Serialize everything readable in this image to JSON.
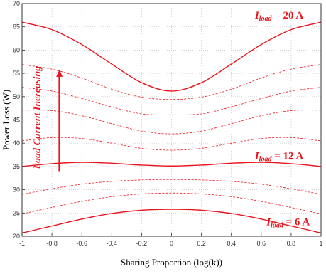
{
  "chart_data": {
    "type": "line",
    "xlabel": "Sharing Proportion (log(k))",
    "ylabel": "Power Loss (W)",
    "xlim": [
      -1,
      1
    ],
    "ylim": [
      20,
      70
    ],
    "xticks": [
      -1,
      -0.8,
      -0.6,
      -0.4,
      -0.2,
      0,
      0.2,
      0.4,
      0.6,
      0.8,
      1
    ],
    "xtick_labels": [
      "-1",
      "-0.8",
      "-0.6",
      "-0.4",
      "-0.2",
      "0",
      "0.2",
      "0.4",
      "0.6",
      "0.8",
      "1"
    ],
    "yticks": [
      20,
      25,
      30,
      35,
      40,
      45,
      50,
      55,
      60,
      65,
      70
    ],
    "ytick_labels": [
      "20",
      "25",
      "30",
      "35",
      "40",
      "45",
      "50",
      "55",
      "60",
      "65",
      "70"
    ],
    "grid": true,
    "line_color": "#e8141c",
    "annotation_color": "#e8141c",
    "x": [
      -1,
      -0.8,
      -0.6,
      -0.4,
      -0.2,
      0,
      0.2,
      0.4,
      0.6,
      0.8,
      1
    ],
    "series": [
      {
        "style": "solid",
        "values": [
          20.7,
          22.2,
          23.7,
          24.9,
          25.6,
          25.8,
          25.6,
          24.9,
          23.7,
          22.2,
          20.7
        ]
      },
      {
        "style": "dashed",
        "values": [
          24.8,
          26.2,
          27.5,
          28.5,
          29.1,
          29.3,
          29.1,
          28.5,
          27.5,
          26.2,
          24.8
        ]
      },
      {
        "style": "dashed",
        "values": [
          29.0,
          30.2,
          31.2,
          31.8,
          32.1,
          32.2,
          32.1,
          31.8,
          31.2,
          30.2,
          29.0
        ]
      },
      {
        "style": "solid",
        "values": [
          35.0,
          35.6,
          35.9,
          35.7,
          35.3,
          35.1,
          35.3,
          35.7,
          35.9,
          35.6,
          35.0
        ]
      },
      {
        "style": "dashed",
        "values": [
          40.5,
          41.2,
          41.0,
          40.0,
          38.9,
          38.5,
          38.9,
          40.0,
          41.0,
          41.2,
          40.5
        ]
      },
      {
        "style": "dashed",
        "values": [
          47.1,
          47.0,
          45.9,
          44.2,
          42.6,
          42.0,
          42.6,
          44.2,
          45.9,
          47.0,
          47.1
        ]
      },
      {
        "style": "dashed",
        "values": [
          52.0,
          51.2,
          49.6,
          47.8,
          46.3,
          46.1,
          46.3,
          47.8,
          49.6,
          51.2,
          52.0
        ]
      },
      {
        "style": "dashed",
        "values": [
          56.9,
          55.9,
          54.0,
          51.6,
          49.9,
          49.4,
          49.9,
          51.6,
          54.0,
          55.9,
          56.9
        ]
      },
      {
        "style": "solid",
        "values": [
          66.0,
          64.4,
          61.2,
          57.0,
          53.0,
          51.2,
          53.0,
          57.0,
          61.2,
          64.4,
          66.0
        ]
      }
    ],
    "annotations": {
      "load_20": {
        "text_i": "I",
        "text_sub": "load",
        "text_val": " = 20 A",
        "x": 0.72,
        "y": 66.8
      },
      "load_12": {
        "text_i": "I",
        "text_sub": "load",
        "text_val": " = 12 A",
        "x": 0.72,
        "y": 36.6
      },
      "load_6": {
        "text_i": "I",
        "text_sub": "load",
        "text_val": " = 6 A",
        "x": 0.78,
        "y": 22.4
      },
      "increasing": {
        "text": "Load Current Increasing",
        "x": -0.88,
        "y": 45.5
      },
      "arrow": {
        "x": -0.75,
        "y_from": 34.0,
        "y_to": 55.8
      }
    }
  }
}
